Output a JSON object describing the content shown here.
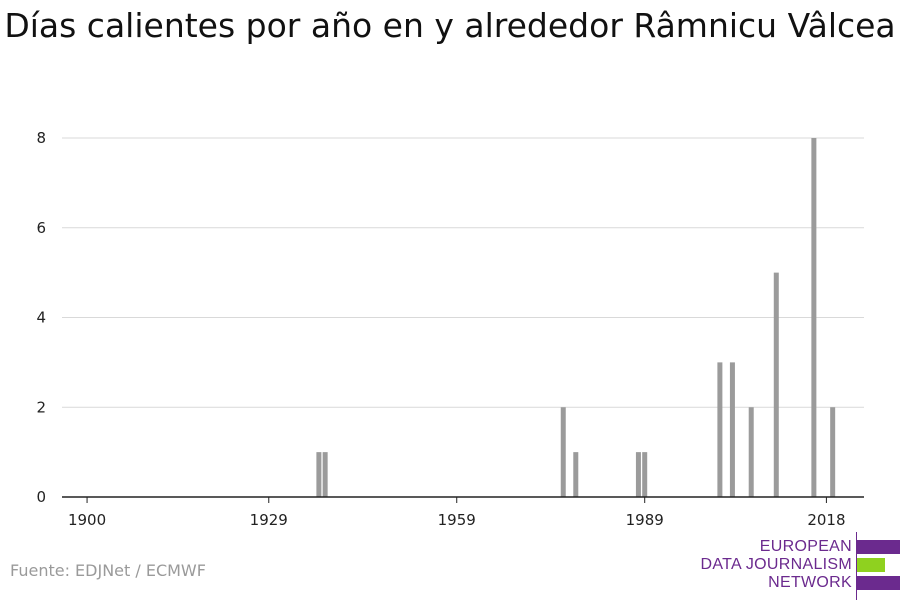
{
  "title": "Días calientes por año en y alrededor Râmnicu Vâlcea",
  "source": "Fuente: EDJNet / ECMWF",
  "logo": {
    "lines": [
      "EUROPEAN",
      "DATA JOURNALISM",
      "NETWORK"
    ],
    "colors": {
      "purple": "#6b2a8e",
      "green": "#8fd11f"
    }
  },
  "colors": {
    "bar": "#9b9b9b",
    "grid": "#d9d9d9",
    "axis": "#222222"
  },
  "chart_data": {
    "type": "bar",
    "x": [
      1922,
      1923,
      1925,
      1926,
      1933,
      1934,
      1937,
      1938,
      1940,
      1943,
      1946,
      1948,
      1950,
      1953,
      1954,
      1962,
      1965,
      1966,
      1968,
      1969,
      1971,
      1972,
      1976,
      1977,
      1978,
      1984,
      1985,
      1988,
      1989,
      1991,
      1994,
      1995,
      1998,
      2000,
      2001,
      2002,
      2003,
      2004,
      2006,
      2007,
      2008,
      2010,
      2012,
      2014,
      2015,
      2016,
      2017,
      2019
    ],
    "categories": [
      "1900",
      "1929",
      "1959",
      "1989",
      "2018"
    ],
    "values": [
      0,
      0,
      0,
      0,
      0,
      0,
      1,
      1,
      0,
      0,
      0,
      0,
      0,
      0,
      0,
      0,
      0,
      0,
      0,
      0,
      0,
      0,
      2,
      0,
      1,
      0,
      0,
      1,
      1,
      0,
      0,
      0,
      0,
      0,
      3,
      0,
      3,
      0,
      2,
      0,
      0,
      5,
      0,
      0,
      0,
      8,
      0,
      2
    ],
    "xlim": [
      1896,
      2024
    ],
    "ylim": [
      0,
      8
    ],
    "yticks": [
      0,
      2,
      4,
      6,
      8
    ],
    "xticks": [
      1900,
      1929,
      1959,
      1989,
      2018
    ],
    "xlabel": "",
    "ylabel": "",
    "grid": true,
    "legend": "none"
  }
}
